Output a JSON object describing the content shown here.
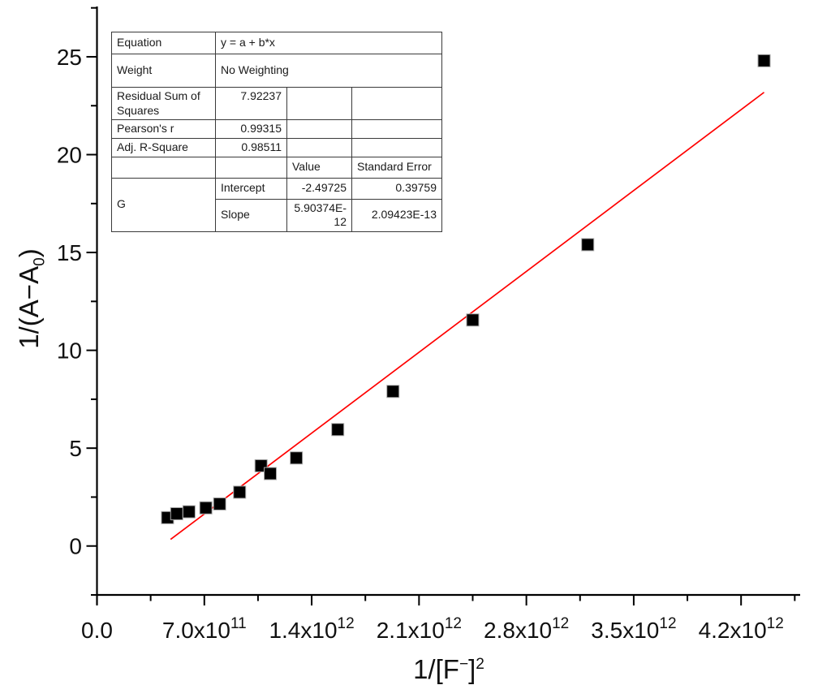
{
  "figure": {
    "background": "#ffffff",
    "axis_color": "#000000",
    "text_color": "#111111"
  },
  "chart_data": {
    "type": "scatter",
    "title": "",
    "xlabel_segments": [
      {
        "t": "1/[F"
      },
      {
        "t": "−",
        "sup": true
      },
      {
        "t": "]"
      },
      {
        "t": "2",
        "sup": true
      }
    ],
    "ylabel_segments": [
      {
        "t": "1/(A−A"
      },
      {
        "t": "0",
        "sub": true
      },
      {
        "t": ")"
      }
    ],
    "x_axis": {
      "lim": [
        0,
        4580000000000.0
      ],
      "major_ticks": [
        {
          "v": 0,
          "base": "0.0",
          "sup": ""
        },
        {
          "v": 700000000000.0,
          "base": "7.0x10",
          "sup": "11"
        },
        {
          "v": 1400000000000.0,
          "base": "1.4x10",
          "sup": "12"
        },
        {
          "v": 2100000000000.0,
          "base": "2.1x10",
          "sup": "12"
        },
        {
          "v": 2800000000000.0,
          "base": "2.8x10",
          "sup": "12"
        },
        {
          "v": 3500000000000.0,
          "base": "3.5x10",
          "sup": "12"
        },
        {
          "v": 4200000000000.0,
          "base": "4.2x10",
          "sup": "12"
        }
      ],
      "minor_ticks": [
        350000000000.0,
        1050000000000.0,
        1750000000000.0,
        2450000000000.0,
        3150000000000.0,
        3850000000000.0,
        4550000000000.0
      ]
    },
    "y_axis": {
      "lim": [
        -2.5,
        27.5
      ],
      "major_ticks": [
        {
          "v": 0,
          "label": "0"
        },
        {
          "v": 5,
          "label": "5"
        },
        {
          "v": 10,
          "label": "10"
        },
        {
          "v": 15,
          "label": "15"
        },
        {
          "v": 20,
          "label": "20"
        },
        {
          "v": 25,
          "label": "25"
        }
      ],
      "minor_ticks": [
        -2.5,
        2.5,
        7.5,
        12.5,
        17.5,
        22.5,
        27.5
      ]
    },
    "series": [
      {
        "name": "G",
        "marker": "square",
        "marker_color": "#000000",
        "marker_edge": "#aaaaaa",
        "points": [
          [
            460000000000.0,
            1.45
          ],
          [
            520000000000.0,
            1.65
          ],
          [
            600000000000.0,
            1.75
          ],
          [
            710000000000.0,
            1.95
          ],
          [
            800000000000.0,
            2.15
          ],
          [
            930000000000.0,
            2.75
          ],
          [
            1070000000000.0,
            4.1
          ],
          [
            1130000000000.0,
            3.7
          ],
          [
            1300000000000.0,
            4.5
          ],
          [
            1570000000000.0,
            5.95
          ],
          [
            1930000000000.0,
            7.9
          ],
          [
            2450000000000.0,
            11.55
          ],
          [
            3200000000000.0,
            15.4
          ],
          [
            4350000000000.0,
            24.8
          ]
        ]
      }
    ],
    "fit_line": {
      "color": "#ff0000",
      "intercept": -2.49725,
      "slope": 5.90374e-12,
      "x_start": 480000000000.0,
      "x_end": 4350000000000.0
    }
  },
  "stats_table": {
    "rows": [
      {
        "cells": [
          {
            "t": "Equation"
          },
          {
            "t": "y = a + b*x",
            "colspan": 3
          }
        ]
      },
      {
        "cells": [
          {
            "t": "Weight"
          },
          {
            "t": "No Weighting",
            "colspan": 3
          }
        ]
      },
      {
        "cells": [
          {
            "t": "Residual Sum of Squares"
          },
          {
            "t": "7.92237",
            "align": "right",
            "va": "top"
          },
          {
            "t": ""
          },
          {
            "t": ""
          }
        ]
      },
      {
        "cells": [
          {
            "t": "Pearson's r"
          },
          {
            "t": "0.99315",
            "align": "right"
          },
          {
            "t": ""
          },
          {
            "t": ""
          }
        ]
      },
      {
        "cells": [
          {
            "t": "Adj. R-Square"
          },
          {
            "t": "0.98511",
            "align": "right"
          },
          {
            "t": ""
          },
          {
            "t": ""
          }
        ]
      },
      {
        "cells": [
          {
            "t": ""
          },
          {
            "t": ""
          },
          {
            "t": "Value"
          },
          {
            "t": "Standard Error"
          }
        ]
      },
      {
        "cells": [
          {
            "t": "G",
            "rowspan": 2
          },
          {
            "t": "Intercept"
          },
          {
            "t": "-2.49725",
            "align": "right"
          },
          {
            "t": "0.39759",
            "align": "right"
          }
        ]
      },
      {
        "cells": [
          {
            "t": "Slope"
          },
          {
            "t": "5.90374E-12",
            "align": "right"
          },
          {
            "t": "2.09423E-13",
            "align": "right"
          }
        ]
      }
    ]
  }
}
